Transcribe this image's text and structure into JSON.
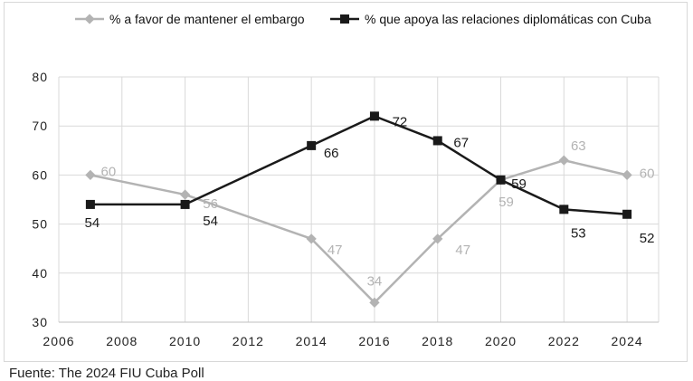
{
  "chart_data": {
    "type": "line",
    "x": [
      2007,
      2010,
      2014,
      2016,
      2018,
      2020,
      2022,
      2024
    ],
    "series": [
      {
        "name": "% a favor de mantener el embargo",
        "values": [
          60,
          56,
          47,
          34,
          47,
          59,
          63,
          60
        ],
        "labels": [
          "60",
          "56",
          "47",
          "34",
          "47",
          "59",
          "63",
          "60"
        ],
        "color": "#b3b3b3",
        "marker": "diamond"
      },
      {
        "name": "% que apoya las relaciones diplomáticas con Cuba",
        "values": [
          54,
          54,
          66,
          72,
          67,
          59,
          53,
          52
        ],
        "labels": [
          "54",
          "54",
          "66",
          "72",
          "67",
          "59",
          "53",
          "52"
        ],
        "color": "#1a1a1a",
        "marker": "square"
      }
    ],
    "xlim": [
      2006,
      2025
    ],
    "ylim": [
      30,
      80
    ],
    "x_ticks": [
      "2006",
      "2008",
      "2010",
      "2012",
      "2014",
      "2016",
      "2018",
      "2020",
      "2022",
      "2024"
    ],
    "y_ticks": [
      "30",
      "40",
      "50",
      "60",
      "70",
      "80"
    ],
    "grid": "vertical and horizontal",
    "legend_position": "top"
  },
  "source": "Fuente: The 2024 FIU Cuba Poll"
}
